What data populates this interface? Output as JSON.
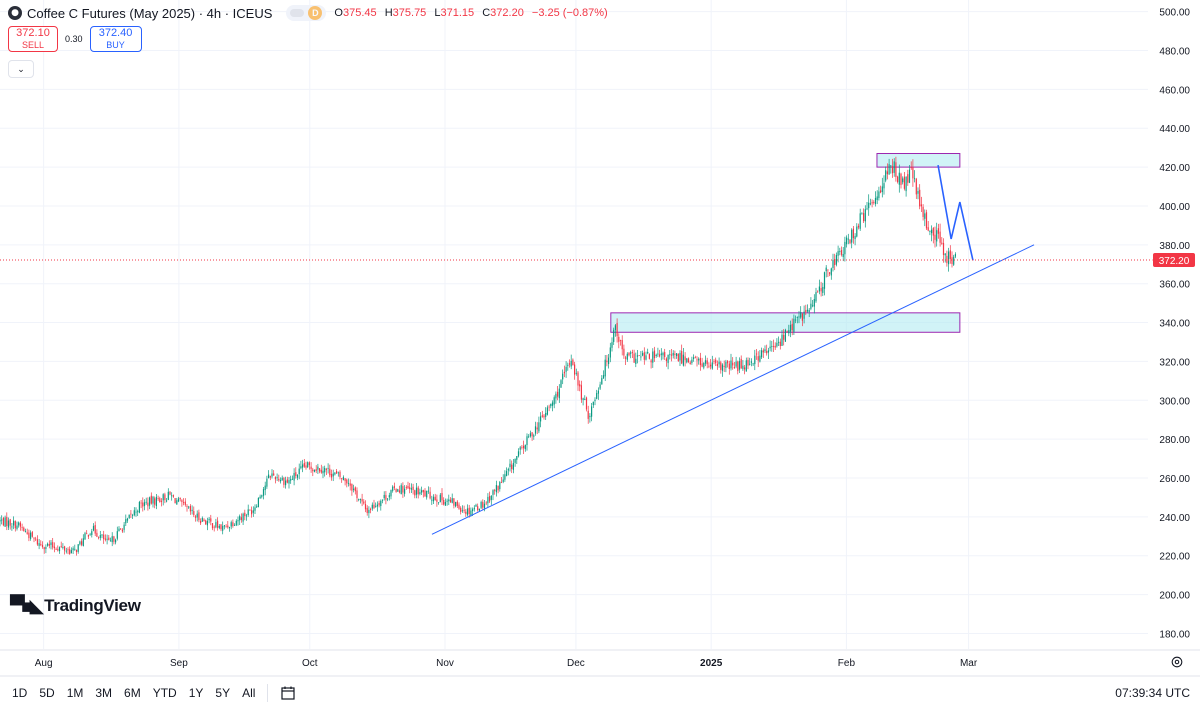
{
  "symbol": {
    "title": "Coffee C Futures (May 2025) · 4h · ICEUS",
    "icon": "coffee-icon",
    "badge": "D",
    "ohlc": [
      {
        "label": "O",
        "value": "375.45"
      },
      {
        "label": "H",
        "value": "375.75"
      },
      {
        "label": "L",
        "value": "371.15"
      },
      {
        "label": "C",
        "value": "372.20"
      }
    ],
    "change": "−3.25 (−0.87%)"
  },
  "trade": {
    "sell_price": "372.10",
    "sell_label": "SELL",
    "spread": "0.30",
    "buy_price": "372.40",
    "buy_label": "BUY"
  },
  "logo_text": "TradingView",
  "price_axis": {
    "ticks": [
      "500.00",
      "480.00",
      "460.00",
      "440.00",
      "420.00",
      "400.00",
      "380.00",
      "360.00",
      "340.00",
      "320.00",
      "300.00",
      "280.00",
      "260.00",
      "240.00",
      "220.00",
      "200.00",
      "180.00"
    ],
    "last_price_label": "372.20"
  },
  "time_axis": {
    "labels": [
      {
        "text": "Aug",
        "bold": false
      },
      {
        "text": "Sep",
        "bold": false
      },
      {
        "text": "Oct",
        "bold": false
      },
      {
        "text": "Nov",
        "bold": false
      },
      {
        "text": "Dec",
        "bold": false
      },
      {
        "text": "2025",
        "bold": true
      },
      {
        "text": "Feb",
        "bold": false
      },
      {
        "text": "Mar",
        "bold": false
      }
    ]
  },
  "ranges": [
    "1D",
    "5D",
    "1M",
    "3M",
    "6M",
    "YTD",
    "1Y",
    "5Y",
    "All"
  ],
  "clock": "07:39:34 UTC",
  "colors": {
    "up": "#089981",
    "down": "#f23645",
    "trendline": "#2962ff",
    "zone_fill": "#b2ebf2",
    "zone_border": "#9c27b0",
    "grid": "#f0f3fa"
  },
  "chart_data": {
    "type": "candlestick",
    "ylim": [
      172,
      506
    ],
    "last_price": 372.2,
    "anchors": [
      {
        "t": "2024-07-22",
        "p": 238
      },
      {
        "t": "2024-07-26",
        "p": 236
      },
      {
        "t": "2024-07-31",
        "p": 226
      },
      {
        "t": "2024-08-05",
        "p": 224
      },
      {
        "t": "2024-08-08",
        "p": 222
      },
      {
        "t": "2024-08-12",
        "p": 234
      },
      {
        "t": "2024-08-16",
        "p": 226
      },
      {
        "t": "2024-08-23",
        "p": 246
      },
      {
        "t": "2024-08-30",
        "p": 251
      },
      {
        "t": "2024-09-05",
        "p": 240
      },
      {
        "t": "2024-09-11",
        "p": 234
      },
      {
        "t": "2024-09-18",
        "p": 244
      },
      {
        "t": "2024-09-22",
        "p": 262
      },
      {
        "t": "2024-09-26",
        "p": 258
      },
      {
        "t": "2024-09-30",
        "p": 266
      },
      {
        "t": "2024-10-04",
        "p": 265
      },
      {
        "t": "2024-10-10",
        "p": 258
      },
      {
        "t": "2024-10-14",
        "p": 243
      },
      {
        "t": "2024-10-21",
        "p": 255
      },
      {
        "t": "2024-10-27",
        "p": 252
      },
      {
        "t": "2024-11-03",
        "p": 247
      },
      {
        "t": "2024-11-06",
        "p": 243
      },
      {
        "t": "2024-11-10",
        "p": 247
      },
      {
        "t": "2024-11-14",
        "p": 258
      },
      {
        "t": "2024-11-20",
        "p": 280
      },
      {
        "t": "2024-11-26",
        "p": 300
      },
      {
        "t": "2024-11-30",
        "p": 322
      },
      {
        "t": "2024-12-02",
        "p": 304
      },
      {
        "t": "2024-12-04",
        "p": 292
      },
      {
        "t": "2024-12-08",
        "p": 320
      },
      {
        "t": "2024-12-10",
        "p": 339
      },
      {
        "t": "2024-12-12",
        "p": 322
      },
      {
        "t": "2024-12-18",
        "p": 322
      },
      {
        "t": "2024-12-26",
        "p": 322
      },
      {
        "t": "2025-01-02",
        "p": 317
      },
      {
        "t": "2025-01-08",
        "p": 318
      },
      {
        "t": "2025-01-12",
        "p": 323
      },
      {
        "t": "2025-01-16",
        "p": 328
      },
      {
        "t": "2025-01-20",
        "p": 340
      },
      {
        "t": "2025-01-24",
        "p": 348
      },
      {
        "t": "2025-01-28",
        "p": 368
      },
      {
        "t": "2025-02-01",
        "p": 380
      },
      {
        "t": "2025-02-04",
        "p": 392
      },
      {
        "t": "2025-02-07",
        "p": 402
      },
      {
        "t": "2025-02-10",
        "p": 416
      },
      {
        "t": "2025-02-12",
        "p": 420
      },
      {
        "t": "2025-02-14",
        "p": 410
      },
      {
        "t": "2025-02-16",
        "p": 418
      },
      {
        "t": "2025-02-18",
        "p": 398
      },
      {
        "t": "2025-02-20",
        "p": 388
      },
      {
        "t": "2025-02-22",
        "p": 384
      },
      {
        "t": "2025-02-24",
        "p": 374
      },
      {
        "t": "2025-02-26",
        "p": 372
      }
    ],
    "trendline": [
      {
        "t": "2024-10-29",
        "p": 231
      },
      {
        "t": "2025-03-16",
        "p": 380
      }
    ],
    "zones": [
      {
        "t1": "2025-02-08",
        "t2": "2025-02-27",
        "p1": 420,
        "p2": 427
      },
      {
        "t1": "2024-12-09",
        "t2": "2025-02-27",
        "p1": 335,
        "p2": 345
      }
    ],
    "projection": [
      {
        "t": "2025-02-22",
        "p": 421
      },
      {
        "t": "2025-02-25",
        "p": 383
      },
      {
        "t": "2025-02-27",
        "p": 402
      },
      {
        "t": "2025-03-02",
        "p": 372
      }
    ]
  }
}
